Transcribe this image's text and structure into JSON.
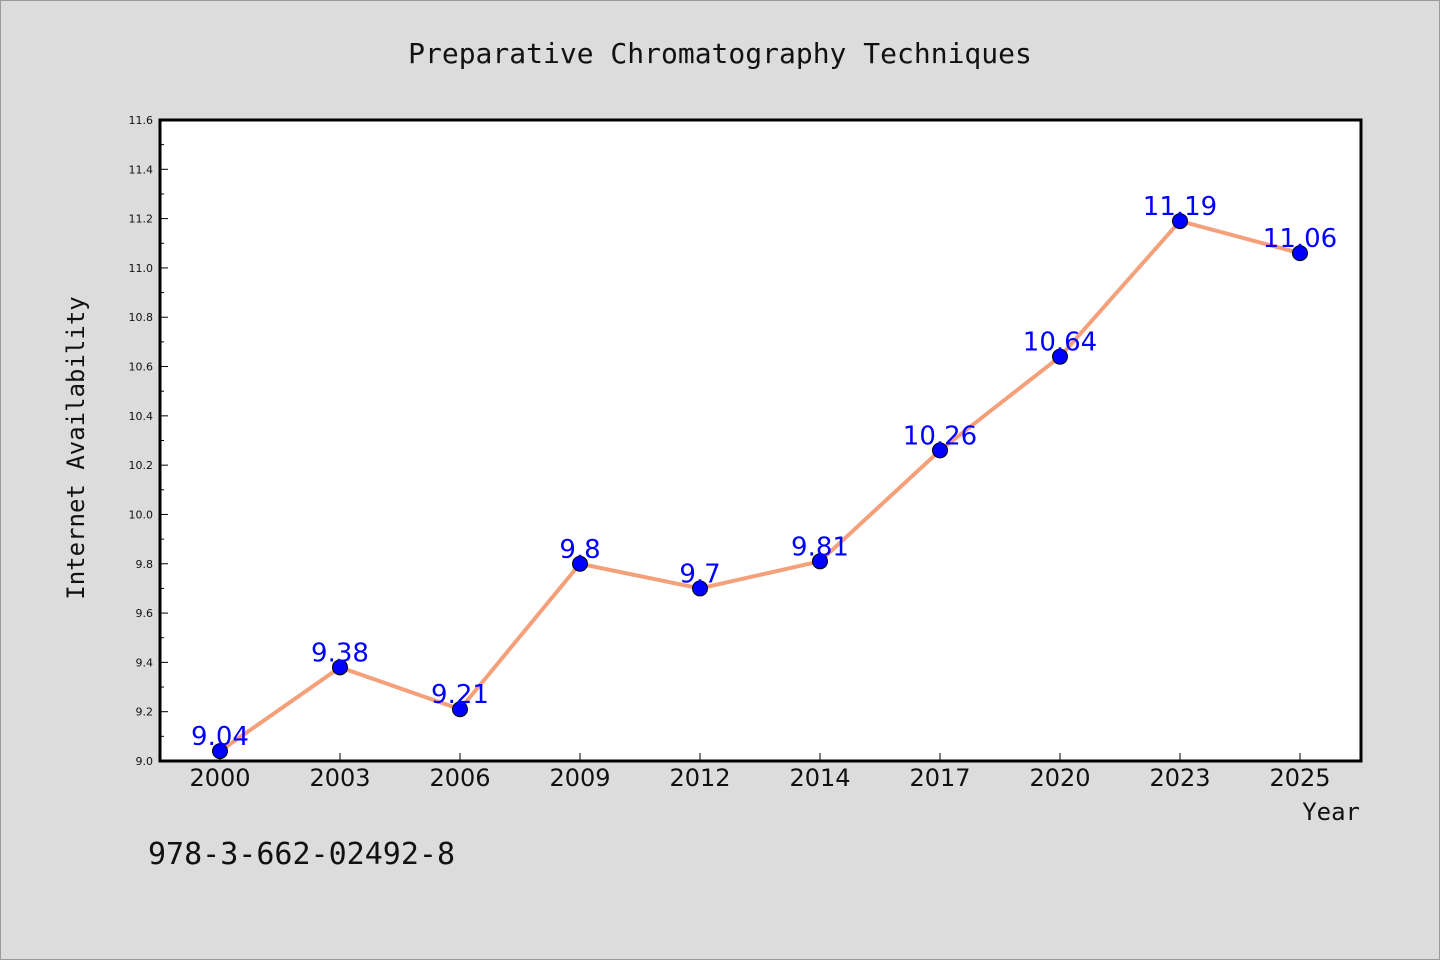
{
  "chart_data": {
    "type": "line",
    "title": "Preparative Chromatography Techniques",
    "xlabel": "Year",
    "ylabel": "Internet Availability",
    "categories": [
      "2000",
      "2003",
      "2006",
      "2009",
      "2012",
      "2014",
      "2017",
      "2020",
      "2023",
      "2025"
    ],
    "values": [
      9.04,
      9.38,
      9.21,
      9.8,
      9.7,
      9.81,
      10.26,
      10.64,
      11.19,
      11.06
    ],
    "data_labels": [
      "9.04",
      "9.38",
      "9.21",
      "9.8",
      "9.7",
      "9.81",
      "10.26",
      "10.64",
      "11.19",
      "11.06"
    ],
    "ylim": [
      9.0,
      11.6
    ],
    "yticks": [
      "9.0",
      "9.2",
      "9.4",
      "9.6",
      "9.8",
      "10.0",
      "10.2",
      "10.4",
      "10.6",
      "10.8",
      "11.0",
      "11.2",
      "11.4",
      "11.6"
    ],
    "grid": false,
    "line_color": "#f4a07a",
    "marker_color": "#0000ff",
    "label_color": "#0000ff"
  },
  "footnote": "978-3-662-02492-8"
}
